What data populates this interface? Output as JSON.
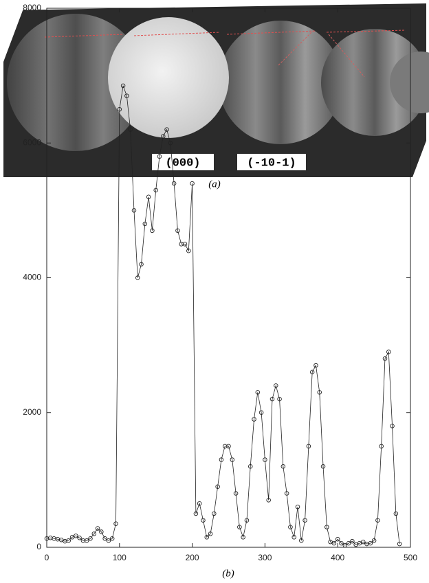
{
  "panel_a": {
    "labels": [
      "(000)",
      "(-10-1)"
    ],
    "caption": "(a)"
  },
  "chart_data": {
    "type": "line",
    "caption": "(b)",
    "x": [
      0,
      5,
      10,
      15,
      20,
      25,
      30,
      35,
      40,
      45,
      50,
      55,
      60,
      65,
      70,
      75,
      80,
      85,
      90,
      95,
      100,
      105,
      110,
      115,
      120,
      125,
      130,
      135,
      140,
      145,
      150,
      155,
      160,
      165,
      170,
      175,
      180,
      185,
      190,
      195,
      200,
      205,
      210,
      215,
      220,
      225,
      230,
      235,
      240,
      245,
      250,
      255,
      260,
      265,
      270,
      275,
      280,
      285,
      290,
      295,
      300,
      305,
      310,
      315,
      320,
      325,
      330,
      335,
      340,
      345,
      350,
      355,
      360,
      365,
      370,
      375,
      380,
      385,
      390,
      395,
      400,
      405,
      410,
      415,
      420,
      425,
      430,
      435,
      440,
      445,
      450,
      455,
      460,
      465,
      470,
      475,
      480,
      485
    ],
    "values": [
      130,
      140,
      130,
      120,
      110,
      90,
      100,
      150,
      170,
      140,
      100,
      100,
      130,
      200,
      280,
      230,
      130,
      100,
      130,
      350,
      6500,
      6850,
      6700,
      6200,
      5000,
      4000,
      4200,
      4800,
      5200,
      4700,
      5300,
      5800,
      6100,
      6200,
      6000,
      5400,
      4700,
      4500,
      4500,
      4400,
      5400,
      500,
      650,
      400,
      150,
      200,
      500,
      900,
      1300,
      1500,
      1500,
      1300,
      800,
      300,
      150,
      400,
      1200,
      1900,
      2300,
      2000,
      1300,
      700,
      2200,
      2400,
      2200,
      1200,
      800,
      300,
      150,
      600,
      100,
      400,
      1500,
      2600,
      2700,
      2300,
      1200,
      300,
      80,
      60,
      120,
      60,
      30,
      60,
      90,
      40,
      60,
      80,
      50,
      60,
      100,
      400,
      1500,
      2800,
      2900,
      1800,
      500,
      50
    ],
    "color": "#222222",
    "marker": "circle",
    "xlim": [
      0,
      500
    ],
    "xticks": [
      0,
      100,
      200,
      300,
      400,
      500
    ],
    "ylim": [
      0,
      8000
    ],
    "yticks": [
      0,
      2000,
      4000,
      6000,
      8000
    ],
    "grid": false
  }
}
